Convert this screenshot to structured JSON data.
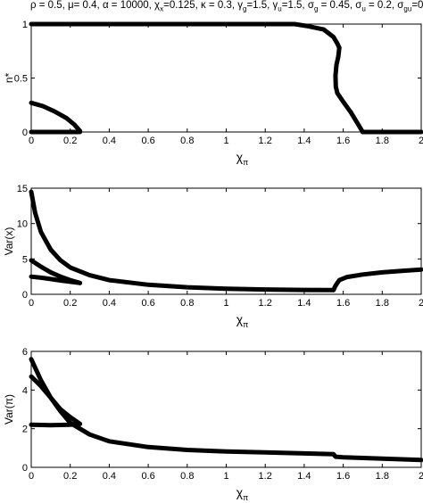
{
  "title_parts": [
    {
      "t": "ρ = 0.5, μ= 0.4, α = 10000, χ"
    },
    {
      "s": "x"
    },
    {
      "t": "=0.125, κ = 0.3, γ"
    },
    {
      "s": "g"
    },
    {
      "t": "=1.5, γ"
    },
    {
      "s": "u"
    },
    {
      "t": "=1.5, σ"
    },
    {
      "s": "g"
    },
    {
      "t": " = 0.45, σ"
    },
    {
      "s": "u"
    },
    {
      "t": " = 0.2, σ"
    },
    {
      "s": "gu"
    },
    {
      "t": "=0"
    }
  ],
  "chart_data": [
    {
      "type": "scatter",
      "ylabel": "n*",
      "xlabel_main": "χ",
      "xlabel_sub": "π",
      "xlim": [
        0,
        2
      ],
      "ylim": [
        0,
        1
      ],
      "xticks": [
        "0",
        "0.2",
        "0.4",
        "0.6",
        "0.8",
        "1",
        "1.2",
        "1.4",
        "1.6",
        "1.8",
        "2"
      ],
      "yticks": [
        "0",
        "0.5",
        "1"
      ],
      "series": [
        {
          "points": [
            [
              0,
              1
            ],
            [
              0.3,
              1
            ],
            [
              0.6,
              1
            ],
            [
              0.9,
              1
            ],
            [
              1.2,
              1
            ],
            [
              1.35,
              1
            ],
            [
              1.42,
              0.98
            ],
            [
              1.5,
              0.95
            ],
            [
              1.55,
              0.88
            ],
            [
              1.57,
              0.82
            ],
            [
              1.58,
              0.78
            ]
          ]
        },
        {
          "points": [
            [
              1.58,
              0.78
            ],
            [
              1.575,
              0.7
            ],
            [
              1.565,
              0.62
            ],
            [
              1.56,
              0.52
            ],
            [
              1.562,
              0.42
            ],
            [
              1.57,
              0.36
            ],
            [
              1.6,
              0.28
            ],
            [
              1.64,
              0.18
            ],
            [
              1.68,
              0.06
            ],
            [
              1.7,
              0.0
            ]
          ]
        },
        {
          "points": [
            [
              1.7,
              0
            ],
            [
              1.8,
              0
            ],
            [
              1.9,
              0
            ],
            [
              2,
              0
            ]
          ]
        },
        {
          "points": [
            [
              0,
              0.27
            ],
            [
              0.06,
              0.24
            ],
            [
              0.12,
              0.19
            ],
            [
              0.18,
              0.13
            ],
            [
              0.22,
              0.07
            ],
            [
              0.25,
              0.01
            ]
          ]
        },
        {
          "points": [
            [
              0,
              0
            ],
            [
              0.1,
              0
            ],
            [
              0.2,
              0
            ],
            [
              0.25,
              0
            ]
          ]
        }
      ]
    },
    {
      "type": "scatter",
      "ylabel": "Var(x)",
      "xlabel_main": "χ",
      "xlabel_sub": "π",
      "xlim": [
        0,
        2
      ],
      "ylim": [
        0,
        15
      ],
      "xticks": [
        "0",
        "0.2",
        "0.4",
        "0.6",
        "0.8",
        "1",
        "1.2",
        "1.4",
        "1.6",
        "1.8",
        "2"
      ],
      "yticks": [
        "0",
        "5",
        "10",
        "15"
      ],
      "series": [
        {
          "points": [
            [
              0,
              14.5
            ],
            [
              0.02,
              11.5
            ],
            [
              0.05,
              8.8
            ],
            [
              0.1,
              6.3
            ],
            [
              0.15,
              4.8
            ],
            [
              0.2,
              3.8
            ],
            [
              0.3,
              2.7
            ],
            [
              0.4,
              2.0
            ],
            [
              0.6,
              1.35
            ],
            [
              0.8,
              1.0
            ],
            [
              1.0,
              0.8
            ],
            [
              1.2,
              0.68
            ],
            [
              1.4,
              0.62
            ],
            [
              1.55,
              0.6
            ]
          ]
        },
        {
          "points": [
            [
              1.55,
              0.6
            ],
            [
              1.56,
              1.2
            ],
            [
              1.58,
              2.0
            ],
            [
              1.62,
              2.45
            ],
            [
              1.7,
              2.8
            ],
            [
              1.8,
              3.1
            ],
            [
              1.9,
              3.3
            ],
            [
              2,
              3.5
            ]
          ]
        },
        {
          "points": [
            [
              0,
              4.8
            ],
            [
              0.05,
              3.9
            ],
            [
              0.1,
              3.1
            ],
            [
              0.15,
              2.5
            ],
            [
              0.2,
              2.0
            ],
            [
              0.25,
              1.6
            ]
          ]
        },
        {
          "points": [
            [
              0,
              2.5
            ],
            [
              0.05,
              2.35
            ],
            [
              0.1,
              2.15
            ],
            [
              0.15,
              1.95
            ],
            [
              0.2,
              1.78
            ],
            [
              0.25,
              1.6
            ]
          ]
        }
      ]
    },
    {
      "type": "scatter",
      "ylabel": "Var(π)",
      "xlabel_main": "χ",
      "xlabel_sub": "π",
      "xlim": [
        0,
        2
      ],
      "ylim": [
        0,
        6
      ],
      "xticks": [
        "0",
        "0.2",
        "0.4",
        "0.6",
        "0.8",
        "1",
        "1.2",
        "1.4",
        "1.6",
        "1.8",
        "2"
      ],
      "yticks": [
        "0",
        "2",
        "4",
        "6"
      ],
      "series": [
        {
          "points": [
            [
              0,
              5.6
            ],
            [
              0.05,
              4.5
            ],
            [
              0.1,
              3.6
            ],
            [
              0.15,
              2.9
            ],
            [
              0.2,
              2.3
            ],
            [
              0.3,
              1.7
            ],
            [
              0.4,
              1.35
            ],
            [
              0.6,
              1.05
            ],
            [
              0.8,
              0.9
            ],
            [
              1.0,
              0.82
            ],
            [
              1.2,
              0.77
            ],
            [
              1.4,
              0.72
            ],
            [
              1.55,
              0.68
            ]
          ]
        },
        {
          "points": [
            [
              1.55,
              0.68
            ],
            [
              1.56,
              0.55
            ],
            [
              1.6,
              0.52
            ],
            [
              1.8,
              0.45
            ],
            [
              2,
              0.38
            ]
          ]
        },
        {
          "points": [
            [
              0,
              4.7
            ],
            [
              0.05,
              4.2
            ],
            [
              0.1,
              3.6
            ],
            [
              0.15,
              3.0
            ],
            [
              0.2,
              2.6
            ],
            [
              0.25,
              2.25
            ]
          ]
        },
        {
          "points": [
            [
              0,
              2.2
            ],
            [
              0.1,
              2.18
            ],
            [
              0.2,
              2.2
            ],
            [
              0.25,
              2.25
            ]
          ]
        }
      ]
    }
  ]
}
